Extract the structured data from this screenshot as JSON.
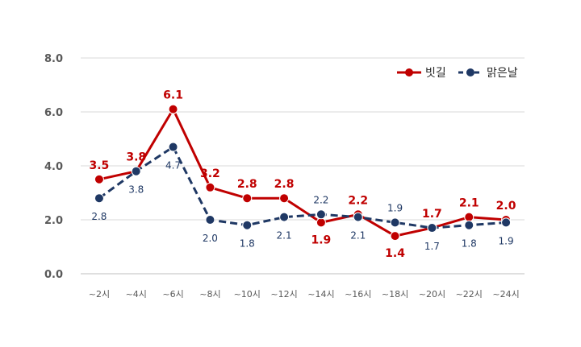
{
  "chart_data": {
    "type": "line",
    "title": "",
    "xlabel": "",
    "ylabel": "",
    "ylim": [
      0,
      8
    ],
    "y_ticks": [
      "0.0",
      "2.0",
      "4.0",
      "6.0",
      "8.0"
    ],
    "categories": [
      "~2시",
      "~4시",
      "~6시",
      "~8시",
      "~10시",
      "~12시",
      "~14시",
      "~16시",
      "~18시",
      "~20시",
      "~22시",
      "~24시"
    ],
    "grid": true,
    "legend_position": "top-right",
    "series": [
      {
        "name": "빗길",
        "color": "#c00000",
        "line_style": "solid",
        "values": [
          3.5,
          3.8,
          6.1,
          3.2,
          2.8,
          2.8,
          1.9,
          2.2,
          1.4,
          1.7,
          2.1,
          2.0
        ],
        "labels": [
          "3.5",
          "3.8",
          "6.1",
          "3.2",
          "2.8",
          "2.8",
          "1.9",
          "2.2",
          "1.4",
          "1.7",
          "2.1",
          "2.0"
        ]
      },
      {
        "name": "맑은날",
        "color": "#1f3864",
        "line_style": "dashed",
        "values": [
          2.8,
          3.8,
          4.7,
          2.0,
          1.8,
          2.1,
          2.2,
          2.1,
          1.9,
          1.7,
          1.8,
          1.9
        ],
        "labels": [
          "2.8",
          "3.8",
          "4.7",
          "2.0",
          "1.8",
          "2.1",
          "2.2",
          "2.1",
          "1.9",
          "1.7",
          "1.8",
          "1.9"
        ]
      }
    ]
  }
}
